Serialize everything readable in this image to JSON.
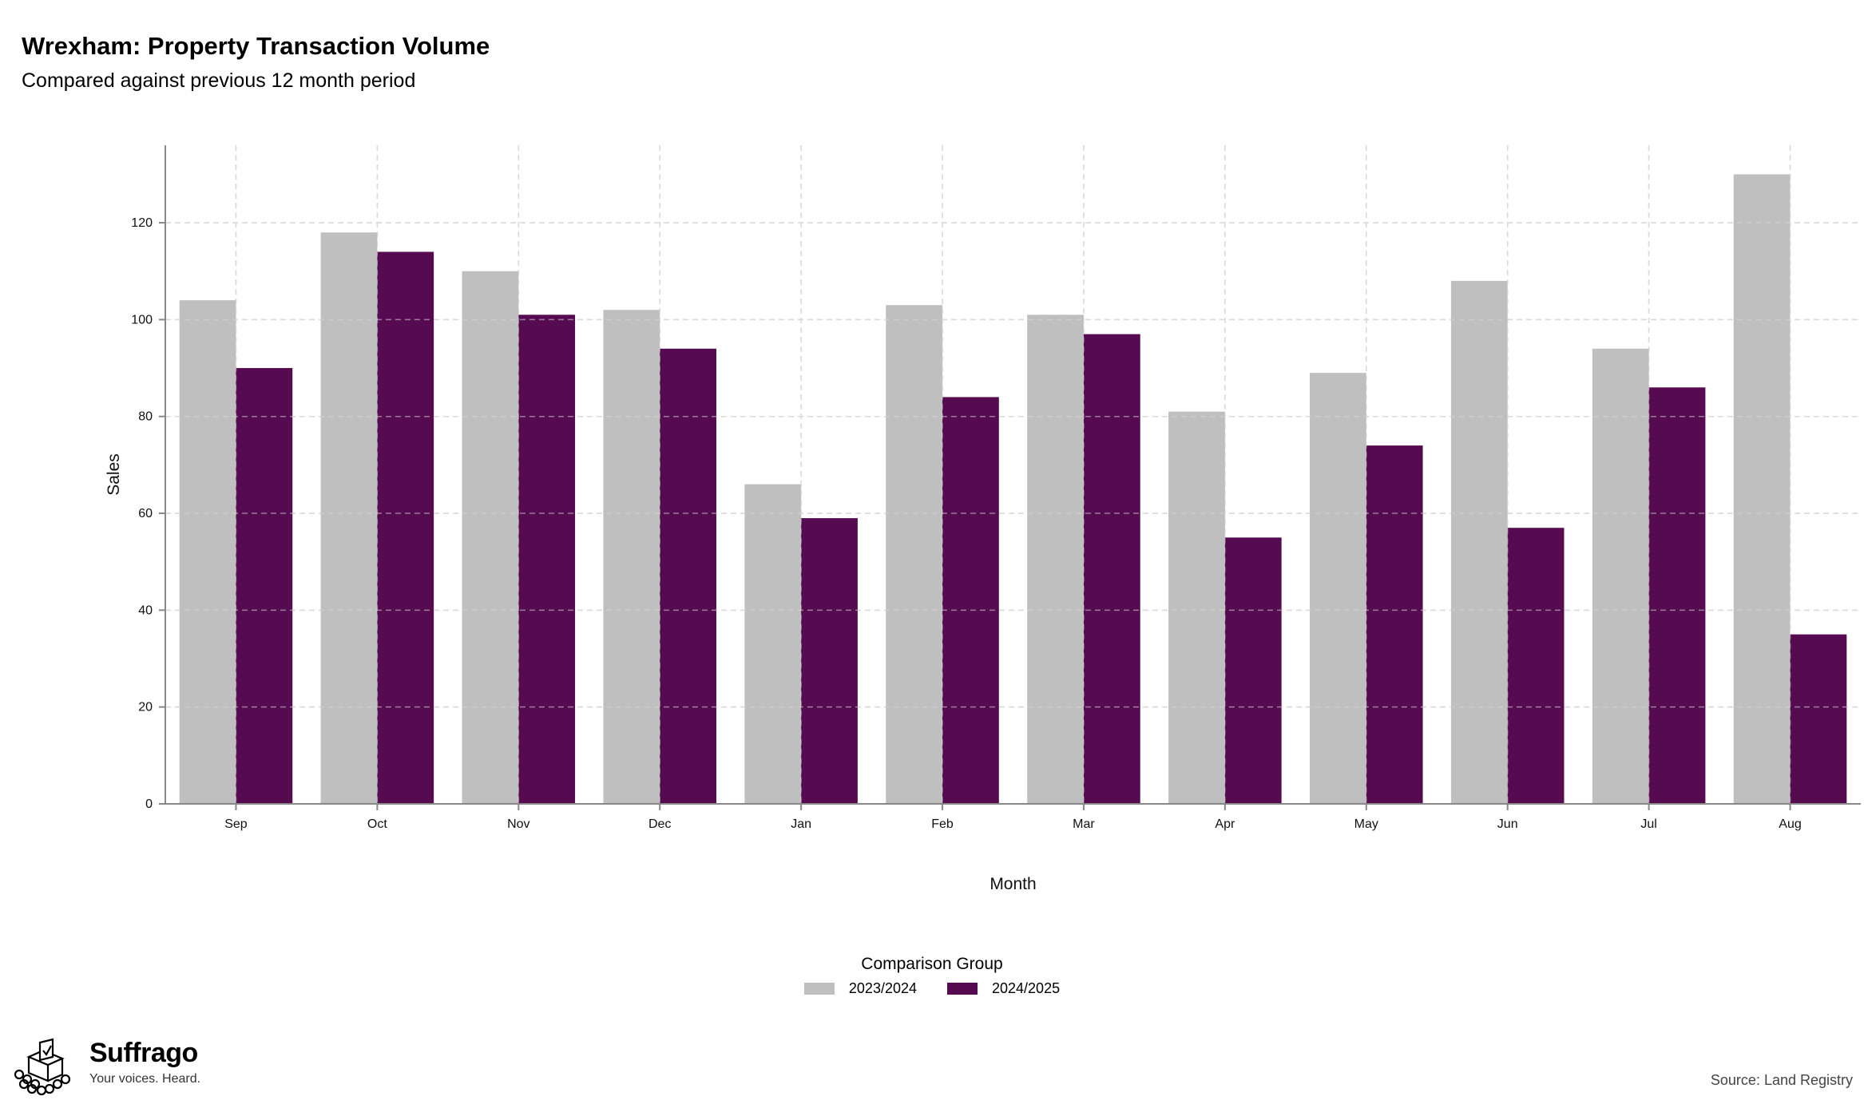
{
  "header": {
    "title": "Wrexham: Property Transaction Volume",
    "subtitle": "Compared against previous 12 month period"
  },
  "chart_data": {
    "type": "bar",
    "title": "Wrexham: Property Transaction Volume",
    "subtitle": "Compared against previous 12 month period",
    "xlabel": "Month",
    "ylabel": "Sales",
    "categories": [
      "Sep",
      "Oct",
      "Nov",
      "Dec",
      "Jan",
      "Feb",
      "Mar",
      "Apr",
      "May",
      "Jun",
      "Jul",
      "Aug"
    ],
    "series": [
      {
        "name": "2023/2024",
        "color": "#bfbfbf",
        "values": [
          104,
          118,
          110,
          102,
          66,
          103,
          101,
          81,
          89,
          108,
          94,
          130
        ]
      },
      {
        "name": "2024/2025",
        "color": "#560b51",
        "values": [
          90,
          114,
          101,
          94,
          59,
          84,
          97,
          55,
          74,
          57,
          86,
          35
        ]
      }
    ],
    "ylim": [
      0,
      136
    ],
    "yticks": [
      0,
      20,
      40,
      60,
      80,
      100,
      120
    ],
    "grid": true,
    "legend": {
      "title": "Comparison Group",
      "position": "bottom-center"
    }
  },
  "legend": {
    "title": "Comparison Group",
    "items": [
      "2023/2024",
      "2024/2025"
    ]
  },
  "brand": {
    "name": "Suffrago",
    "tagline": "Your voices. Heard.",
    "icon": "ballot-box-icon"
  },
  "footer": {
    "source": "Source: Land Registry"
  }
}
